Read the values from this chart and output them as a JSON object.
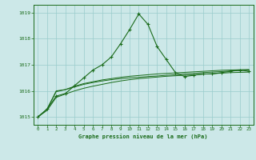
{
  "title": "Graphe pression niveau de la mer (hPa)",
  "background_color": "#cce8e8",
  "grid_color": "#99cccc",
  "line_color": "#1a6b1a",
  "xlim": [
    -0.5,
    23.5
  ],
  "ylim": [
    1014.7,
    1019.3
  ],
  "yticks": [
    1015,
    1016,
    1017,
    1018,
    1019
  ],
  "xticks": [
    0,
    1,
    2,
    3,
    4,
    5,
    6,
    7,
    8,
    9,
    10,
    11,
    12,
    13,
    14,
    15,
    16,
    17,
    18,
    19,
    20,
    21,
    22,
    23
  ],
  "series1": [
    1015.0,
    1015.3,
    1015.8,
    1015.9,
    1016.2,
    1016.5,
    1016.8,
    1017.0,
    1017.3,
    1017.8,
    1018.35,
    1018.95,
    1018.55,
    1017.7,
    1017.2,
    1016.7,
    1016.55,
    1016.6,
    1016.65,
    1016.65,
    1016.7,
    1016.75,
    1016.8,
    1016.75
  ],
  "series2": [
    1015.0,
    1015.3,
    1016.0,
    1016.05,
    1016.15,
    1016.25,
    1016.32,
    1016.38,
    1016.43,
    1016.47,
    1016.5,
    1016.52,
    1016.55,
    1016.57,
    1016.6,
    1016.62,
    1016.65,
    1016.67,
    1016.7,
    1016.72,
    1016.74,
    1016.76,
    1016.78,
    1016.8
  ],
  "series3": [
    1015.0,
    1015.3,
    1015.97,
    1016.05,
    1016.18,
    1016.28,
    1016.35,
    1016.42,
    1016.47,
    1016.52,
    1016.56,
    1016.59,
    1016.62,
    1016.65,
    1016.67,
    1016.69,
    1016.71,
    1016.73,
    1016.75,
    1016.77,
    1016.79,
    1016.8,
    1016.81,
    1016.82
  ],
  "series4": [
    1015.0,
    1015.25,
    1015.75,
    1015.88,
    1016.0,
    1016.1,
    1016.18,
    1016.25,
    1016.32,
    1016.38,
    1016.43,
    1016.47,
    1016.5,
    1016.53,
    1016.56,
    1016.58,
    1016.6,
    1016.62,
    1016.64,
    1016.66,
    1016.68,
    1016.7,
    1016.71,
    1016.72
  ]
}
